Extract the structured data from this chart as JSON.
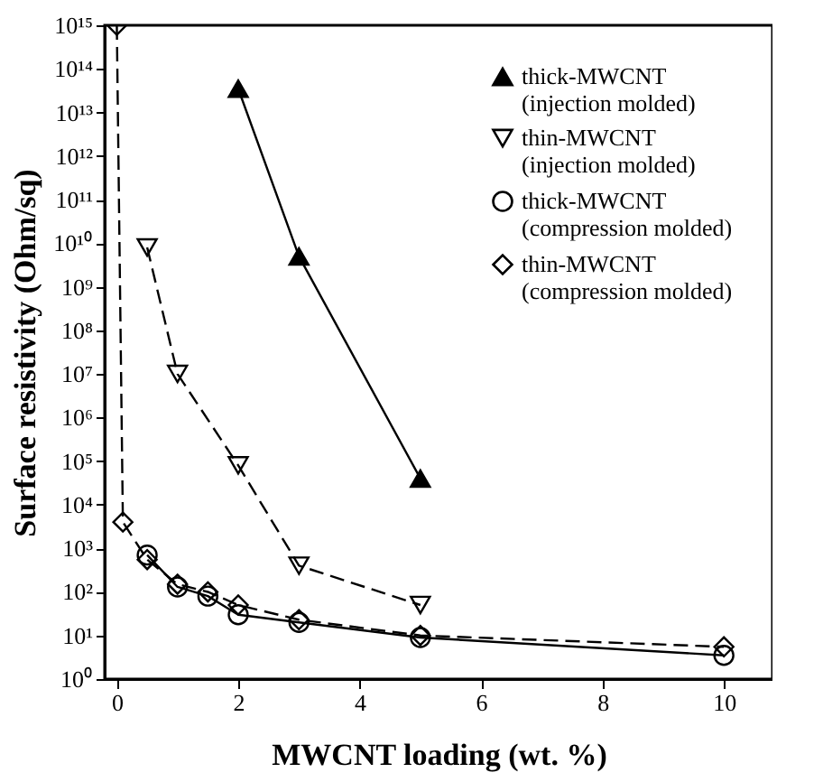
{
  "chart_data": {
    "type": "line",
    "xlabel": "MWCNT loading (wt. %)",
    "ylabel": "Surface resistivity (Ohm/sq)",
    "log": "y",
    "grid": false,
    "legend": "top right",
    "xlim": [
      -0.2,
      10.8
    ],
    "xticks": [
      0,
      2,
      4,
      6,
      8,
      10
    ],
    "ylim": [
      1,
      1000000000000000.0
    ],
    "yticks": [
      {
        "value": 1,
        "label": "10⁰"
      },
      {
        "value": 10,
        "label": "10¹"
      },
      {
        "value": 100,
        "label": "10²"
      },
      {
        "value": 1000,
        "label": "10³"
      },
      {
        "value": 10000,
        "label": "10⁴"
      },
      {
        "value": 100000,
        "label": "10⁵"
      },
      {
        "value": 1000000,
        "label": "10⁶"
      },
      {
        "value": 10000000,
        "label": "10⁷"
      },
      {
        "value": 100000000,
        "label": "10⁸"
      },
      {
        "value": 1000000000,
        "label": "10⁹"
      },
      {
        "value": 10000000000,
        "label": "10¹⁰"
      },
      {
        "value": 100000000000,
        "label": "10¹¹"
      },
      {
        "value": 1000000000000,
        "label": "10¹²"
      },
      {
        "value": 10000000000000,
        "label": "10¹³"
      },
      {
        "value": 100000000000000,
        "label": "10¹⁴"
      },
      {
        "value": 1000000000000000,
        "label": "10¹⁵"
      }
    ],
    "series": [
      {
        "name": "thick-MWCNT (injection molded)",
        "color": "#000000",
        "marker": "triangle",
        "line_style": "solid",
        "x": [
          2,
          3,
          5
        ],
        "values": [
          35000000000000.0,
          5000000000.0,
          40000.0
        ]
      },
      {
        "name": "thin-MWCNT (injection molded)",
        "color": "#000000",
        "marker": "triangle-down",
        "line_style": "dashed",
        "x": [
          0.5,
          1,
          2,
          3,
          5
        ],
        "values": [
          8000000000.0,
          10000000.0,
          80000.0,
          400.0,
          50.0
        ]
      },
      {
        "name": "thick-MWCNT (compression molded)",
        "color": "#000000",
        "marker": "circle",
        "line_style": "solid",
        "x": [
          0.5,
          1,
          1.5,
          2,
          3,
          5,
          10
        ],
        "values": [
          700.0,
          130,
          80,
          30,
          20,
          9,
          3.5
        ]
      },
      {
        "name": "thin-MWCNT (compression molded)",
        "color": "#000000",
        "marker": "diamond",
        "line_style": "dashed",
        "x": [
          0,
          0.1,
          0.5,
          1,
          1.5,
          2,
          3,
          5,
          10
        ],
        "values": [
          1000000000000000.0,
          4000.0,
          550,
          150,
          100,
          50,
          23,
          10,
          5.5
        ]
      }
    ]
  }
}
